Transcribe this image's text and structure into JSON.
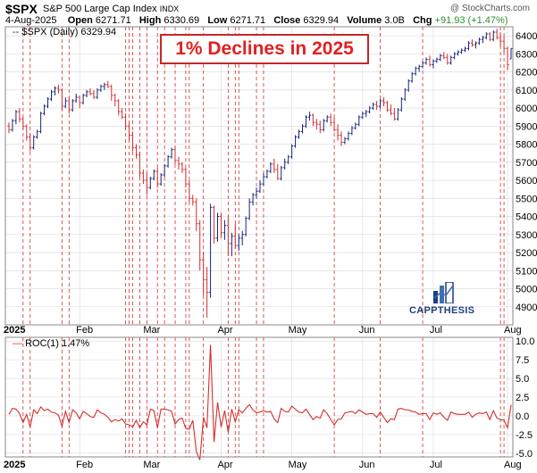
{
  "header": {
    "symbol": "$SPX",
    "name": "S&P 500 Large Cap Index",
    "exchange": "INDX",
    "brand": "@ StockCharts.com",
    "date": "4-Aug-2025",
    "open_label": "Open",
    "open": "6271.71",
    "high_label": "High",
    "high": "6330.69",
    "low": "6271.71",
    "close_label": "Close",
    "close": "6329.94",
    "volume_label": "Volume",
    "volume": "3.0B",
    "chg_label": "Chg",
    "chg": "+91.93 (+1.47%)"
  },
  "promo_title": "1% Declines in 2025",
  "logo_text": "CAPPTHESIS",
  "chart_data": [
    {
      "type": "candlestick",
      "legend": "$SPX (Daily) 6329.94",
      "ylim": [
        4800,
        6450
      ],
      "yticks": [
        4900,
        5000,
        5100,
        5200,
        5300,
        5400,
        5500,
        5600,
        5700,
        5800,
        5900,
        6000,
        6100,
        6200,
        6300,
        6400
      ],
      "x_start_label": "2025",
      "months": [
        "Feb",
        "Mar",
        "Apr",
        "May",
        "Jun",
        "Jul",
        "Aug"
      ],
      "month_index": [
        20,
        39,
        60,
        80,
        100,
        120,
        141
      ],
      "decline_day_index": [
        4,
        6,
        15,
        17,
        33,
        34,
        35,
        37,
        39,
        42,
        44,
        47,
        50,
        51,
        55,
        62,
        64,
        65,
        70,
        72,
        92,
        105,
        117,
        139,
        140
      ],
      "ohlc": [
        [
          5900,
          5920,
          5860,
          5880
        ],
        [
          5880,
          5940,
          5870,
          5930
        ],
        [
          5930,
          5990,
          5910,
          5980
        ],
        [
          5980,
          6000,
          5920,
          5940
        ],
        [
          5940,
          5950,
          5880,
          5900
        ],
        [
          5900,
          5910,
          5820,
          5840
        ],
        [
          5840,
          5860,
          5760,
          5780
        ],
        [
          5780,
          5850,
          5770,
          5840
        ],
        [
          5840,
          5880,
          5830,
          5870
        ],
        [
          5870,
          5980,
          5860,
          5970
        ],
        [
          5970,
          6020,
          5960,
          6010
        ],
        [
          6010,
          6060,
          6000,
          6050
        ],
        [
          6050,
          6100,
          6040,
          6090
        ],
        [
          6090,
          6120,
          6070,
          6110
        ],
        [
          6110,
          6130,
          6080,
          6100
        ],
        [
          6100,
          6110,
          5990,
          6010
        ],
        [
          6010,
          6060,
          6000,
          6040
        ],
        [
          6040,
          6060,
          5970,
          5990
        ],
        [
          5990,
          6050,
          5980,
          6040
        ],
        [
          6040,
          6080,
          6030,
          6060
        ],
        [
          6060,
          6070,
          6000,
          6030
        ],
        [
          6030,
          6080,
          6020,
          6070
        ],
        [
          6070,
          6100,
          6060,
          6090
        ],
        [
          6090,
          6110,
          6070,
          6080
        ],
        [
          6080,
          6100,
          6050,
          6060
        ],
        [
          6060,
          6110,
          6050,
          6100
        ],
        [
          6100,
          6130,
          6090,
          6120
        ],
        [
          6120,
          6140,
          6100,
          6130
        ],
        [
          6130,
          6150,
          6110,
          6120
        ],
        [
          6120,
          6130,
          6040,
          6070
        ],
        [
          6070,
          6080,
          6010,
          6040
        ],
        [
          6040,
          6050,
          5960,
          5980
        ],
        [
          5980,
          6000,
          5940,
          5950
        ],
        [
          5950,
          5970,
          5880,
          5900
        ],
        [
          5900,
          5920,
          5820,
          5850
        ],
        [
          5850,
          5870,
          5760,
          5780
        ],
        [
          5780,
          5800,
          5720,
          5740
        ],
        [
          5740,
          5760,
          5620,
          5640
        ],
        [
          5640,
          5660,
          5580,
          5600
        ],
        [
          5600,
          5640,
          5520,
          5560
        ],
        [
          5560,
          5620,
          5550,
          5610
        ],
        [
          5610,
          5660,
          5600,
          5650
        ],
        [
          5650,
          5670,
          5560,
          5580
        ],
        [
          5580,
          5640,
          5570,
          5630
        ],
        [
          5630,
          5690,
          5620,
          5680
        ],
        [
          5680,
          5740,
          5670,
          5730
        ],
        [
          5730,
          5780,
          5720,
          5770
        ],
        [
          5770,
          5790,
          5690,
          5710
        ],
        [
          5710,
          5730,
          5660,
          5690
        ],
        [
          5690,
          5700,
          5640,
          5660
        ],
        [
          5660,
          5670,
          5560,
          5580
        ],
        [
          5580,
          5600,
          5480,
          5500
        ],
        [
          5500,
          5520,
          5460,
          5480
        ],
        [
          5480,
          5500,
          5320,
          5360
        ],
        [
          5360,
          5380,
          5100,
          5160
        ],
        [
          5160,
          5200,
          4960,
          5050
        ],
        [
          5050,
          5120,
          4840,
          4980
        ],
        [
          4980,
          5470,
          4950,
          5450
        ],
        [
          5450,
          5460,
          5250,
          5280
        ],
        [
          5280,
          5420,
          5260,
          5400
        ],
        [
          5400,
          5420,
          5280,
          5310
        ],
        [
          5310,
          5380,
          5270,
          5350
        ],
        [
          5350,
          5400,
          5180,
          5250
        ],
        [
          5250,
          5310,
          5180,
          5290
        ],
        [
          5290,
          5360,
          5220,
          5240
        ],
        [
          5240,
          5300,
          5210,
          5280
        ],
        [
          5280,
          5320,
          5240,
          5300
        ],
        [
          5300,
          5400,
          5290,
          5390
        ],
        [
          5390,
          5500,
          5380,
          5480
        ],
        [
          5480,
          5530,
          5460,
          5520
        ],
        [
          5520,
          5560,
          5500,
          5540
        ],
        [
          5540,
          5600,
          5530,
          5580
        ],
        [
          5580,
          5640,
          5570,
          5620
        ],
        [
          5620,
          5660,
          5610,
          5650
        ],
        [
          5650,
          5700,
          5640,
          5690
        ],
        [
          5690,
          5720,
          5640,
          5660
        ],
        [
          5660,
          5690,
          5600,
          5610
        ],
        [
          5610,
          5680,
          5600,
          5670
        ],
        [
          5670,
          5720,
          5660,
          5700
        ],
        [
          5700,
          5740,
          5690,
          5730
        ],
        [
          5730,
          5800,
          5720,
          5790
        ],
        [
          5790,
          5850,
          5780,
          5840
        ],
        [
          5840,
          5880,
          5830,
          5870
        ],
        [
          5870,
          5910,
          5860,
          5900
        ],
        [
          5900,
          5960,
          5890,
          5950
        ],
        [
          5950,
          5980,
          5930,
          5960
        ],
        [
          5960,
          5970,
          5900,
          5920
        ],
        [
          5920,
          5940,
          5880,
          5910
        ],
        [
          5910,
          5930,
          5860,
          5880
        ],
        [
          5880,
          5940,
          5870,
          5930
        ],
        [
          5930,
          5960,
          5920,
          5950
        ],
        [
          5950,
          5970,
          5900,
          5920
        ],
        [
          5920,
          5950,
          5870,
          5880
        ],
        [
          5880,
          5910,
          5820,
          5850
        ],
        [
          5850,
          5870,
          5790,
          5810
        ],
        [
          5810,
          5840,
          5800,
          5830
        ],
        [
          5830,
          5870,
          5820,
          5860
        ],
        [
          5860,
          5900,
          5850,
          5890
        ],
        [
          5890,
          5920,
          5880,
          5910
        ],
        [
          5910,
          5960,
          5900,
          5950
        ],
        [
          5950,
          5980,
          5940,
          5970
        ],
        [
          5970,
          5990,
          5950,
          5980
        ],
        [
          5980,
          6010,
          5970,
          6000
        ],
        [
          6000,
          6030,
          5990,
          6020
        ],
        [
          6020,
          6040,
          5990,
          6010
        ],
        [
          6010,
          6050,
          6000,
          6040
        ],
        [
          6040,
          6060,
          6010,
          6030
        ],
        [
          6030,
          6040,
          5980,
          5990
        ],
        [
          5990,
          6020,
          5960,
          5970
        ],
        [
          5970,
          6000,
          5930,
          5940
        ],
        [
          5940,
          6000,
          5930,
          5990
        ],
        [
          5990,
          6060,
          5980,
          6050
        ],
        [
          6050,
          6110,
          6040,
          6100
        ],
        [
          6100,
          6160,
          6090,
          6150
        ],
        [
          6150,
          6200,
          6140,
          6190
        ],
        [
          6190,
          6230,
          6180,
          6220
        ],
        [
          6220,
          6240,
          6200,
          6230
        ],
        [
          6230,
          6260,
          6220,
          6250
        ],
        [
          6250,
          6280,
          6240,
          6270
        ],
        [
          6270,
          6290,
          6230,
          6240
        ],
        [
          6240,
          6270,
          6220,
          6260
        ],
        [
          6260,
          6280,
          6250,
          6270
        ],
        [
          6270,
          6300,
          6260,
          6290
        ],
        [
          6290,
          6310,
          6270,
          6280
        ],
        [
          6280,
          6300,
          6240,
          6250
        ],
        [
          6250,
          6290,
          6240,
          6280
        ],
        [
          6280,
          6310,
          6270,
          6300
        ],
        [
          6300,
          6320,
          6290,
          6310
        ],
        [
          6310,
          6330,
          6300,
          6320
        ],
        [
          6320,
          6340,
          6310,
          6330
        ],
        [
          6330,
          6370,
          6320,
          6360
        ],
        [
          6360,
          6380,
          6340,
          6350
        ],
        [
          6350,
          6370,
          6330,
          6360
        ],
        [
          6360,
          6390,
          6350,
          6380
        ],
        [
          6380,
          6400,
          6360,
          6390
        ],
        [
          6390,
          6420,
          6380,
          6410
        ],
        [
          6410,
          6420,
          6370,
          6380
        ],
        [
          6380,
          6430,
          6370,
          6420
        ],
        [
          6420,
          6440,
          6380,
          6390
        ],
        [
          6390,
          6420,
          6340,
          6370
        ],
        [
          6370,
          6400,
          6310,
          6330
        ],
        [
          6330,
          6340,
          6210,
          6240
        ],
        [
          6271.71,
          6330.69,
          6271.71,
          6329.94
        ]
      ]
    },
    {
      "type": "line",
      "legend": "ROC(1) 1.47%",
      "ylim": [
        -5.5,
        10.5
      ],
      "yticks": [
        -5.0,
        -2.5,
        0.0,
        2.5,
        5.0,
        7.5,
        10.0
      ],
      "x_start_label": "2025",
      "months": [
        "Feb",
        "Mar",
        "Apr",
        "May",
        "Jun",
        "Jul",
        "Aug"
      ],
      "values": [
        0.2,
        1.0,
        0.9,
        0.3,
        -0.9,
        0.2,
        -1.5,
        0.8,
        0.3,
        1.2,
        0.7,
        0.9,
        0.5,
        0.4,
        0.1,
        -1.4,
        0.6,
        -0.9,
        0.8,
        0.4,
        -0.4,
        0.6,
        0.3,
        -0.1,
        -0.2,
        0.8,
        0.4,
        0.2,
        -0.2,
        -0.8,
        -0.5,
        -0.7,
        -0.4,
        -1.1,
        -1.2,
        -1.5,
        -0.6,
        -1.6,
        -0.8,
        -1.2,
        0.9,
        0.7,
        -1.6,
        0.9,
        0.9,
        0.8,
        0.6,
        -1.1,
        -0.5,
        -0.3,
        -1.7,
        -1.8,
        -0.6,
        -4.8,
        -5.9,
        -0.2,
        -1.6,
        9.5,
        -3.5,
        1.8,
        -1.5,
        0.7,
        -2.2,
        0.9,
        -0.8,
        0.8,
        0.4,
        1.0,
        1.5,
        0.8,
        0.4,
        0.5,
        0.7,
        0.5,
        0.6,
        -0.4,
        -0.9,
        1.0,
        0.6,
        0.5,
        1.3,
        0.9,
        0.5,
        0.4,
        0.9,
        0.2,
        -0.5,
        -0.1,
        -0.3,
        0.8,
        0.3,
        -0.5,
        -1.2,
        -0.5,
        -0.4,
        0.4,
        0.5,
        0.6,
        0.3,
        0.8,
        0.5,
        0.2,
        0.3,
        0.3,
        -0.2,
        0.5,
        -0.2,
        -0.9,
        -0.4,
        -0.5,
        0.9,
        1.0,
        0.8,
        0.8,
        0.6,
        0.5,
        0.2,
        0.3,
        0.3,
        -0.5,
        0.4,
        0.2,
        0.4,
        -0.2,
        -0.6,
        0.5,
        0.3,
        0.2,
        0.2,
        0.2,
        0.5,
        -0.2,
        0.2,
        0.4,
        0.3,
        0.5,
        -0.5,
        0.7,
        -0.3,
        -0.5,
        -0.6,
        -1.6,
        1.47
      ]
    }
  ],
  "colors": {
    "up": "#1a237e",
    "down": "#d32f2f",
    "decline_line": "#d32f2f",
    "roc_line": "#d32f2f",
    "grid": "#d9d9d9",
    "promo": "#e02020",
    "logo": "#1f3f7a"
  }
}
